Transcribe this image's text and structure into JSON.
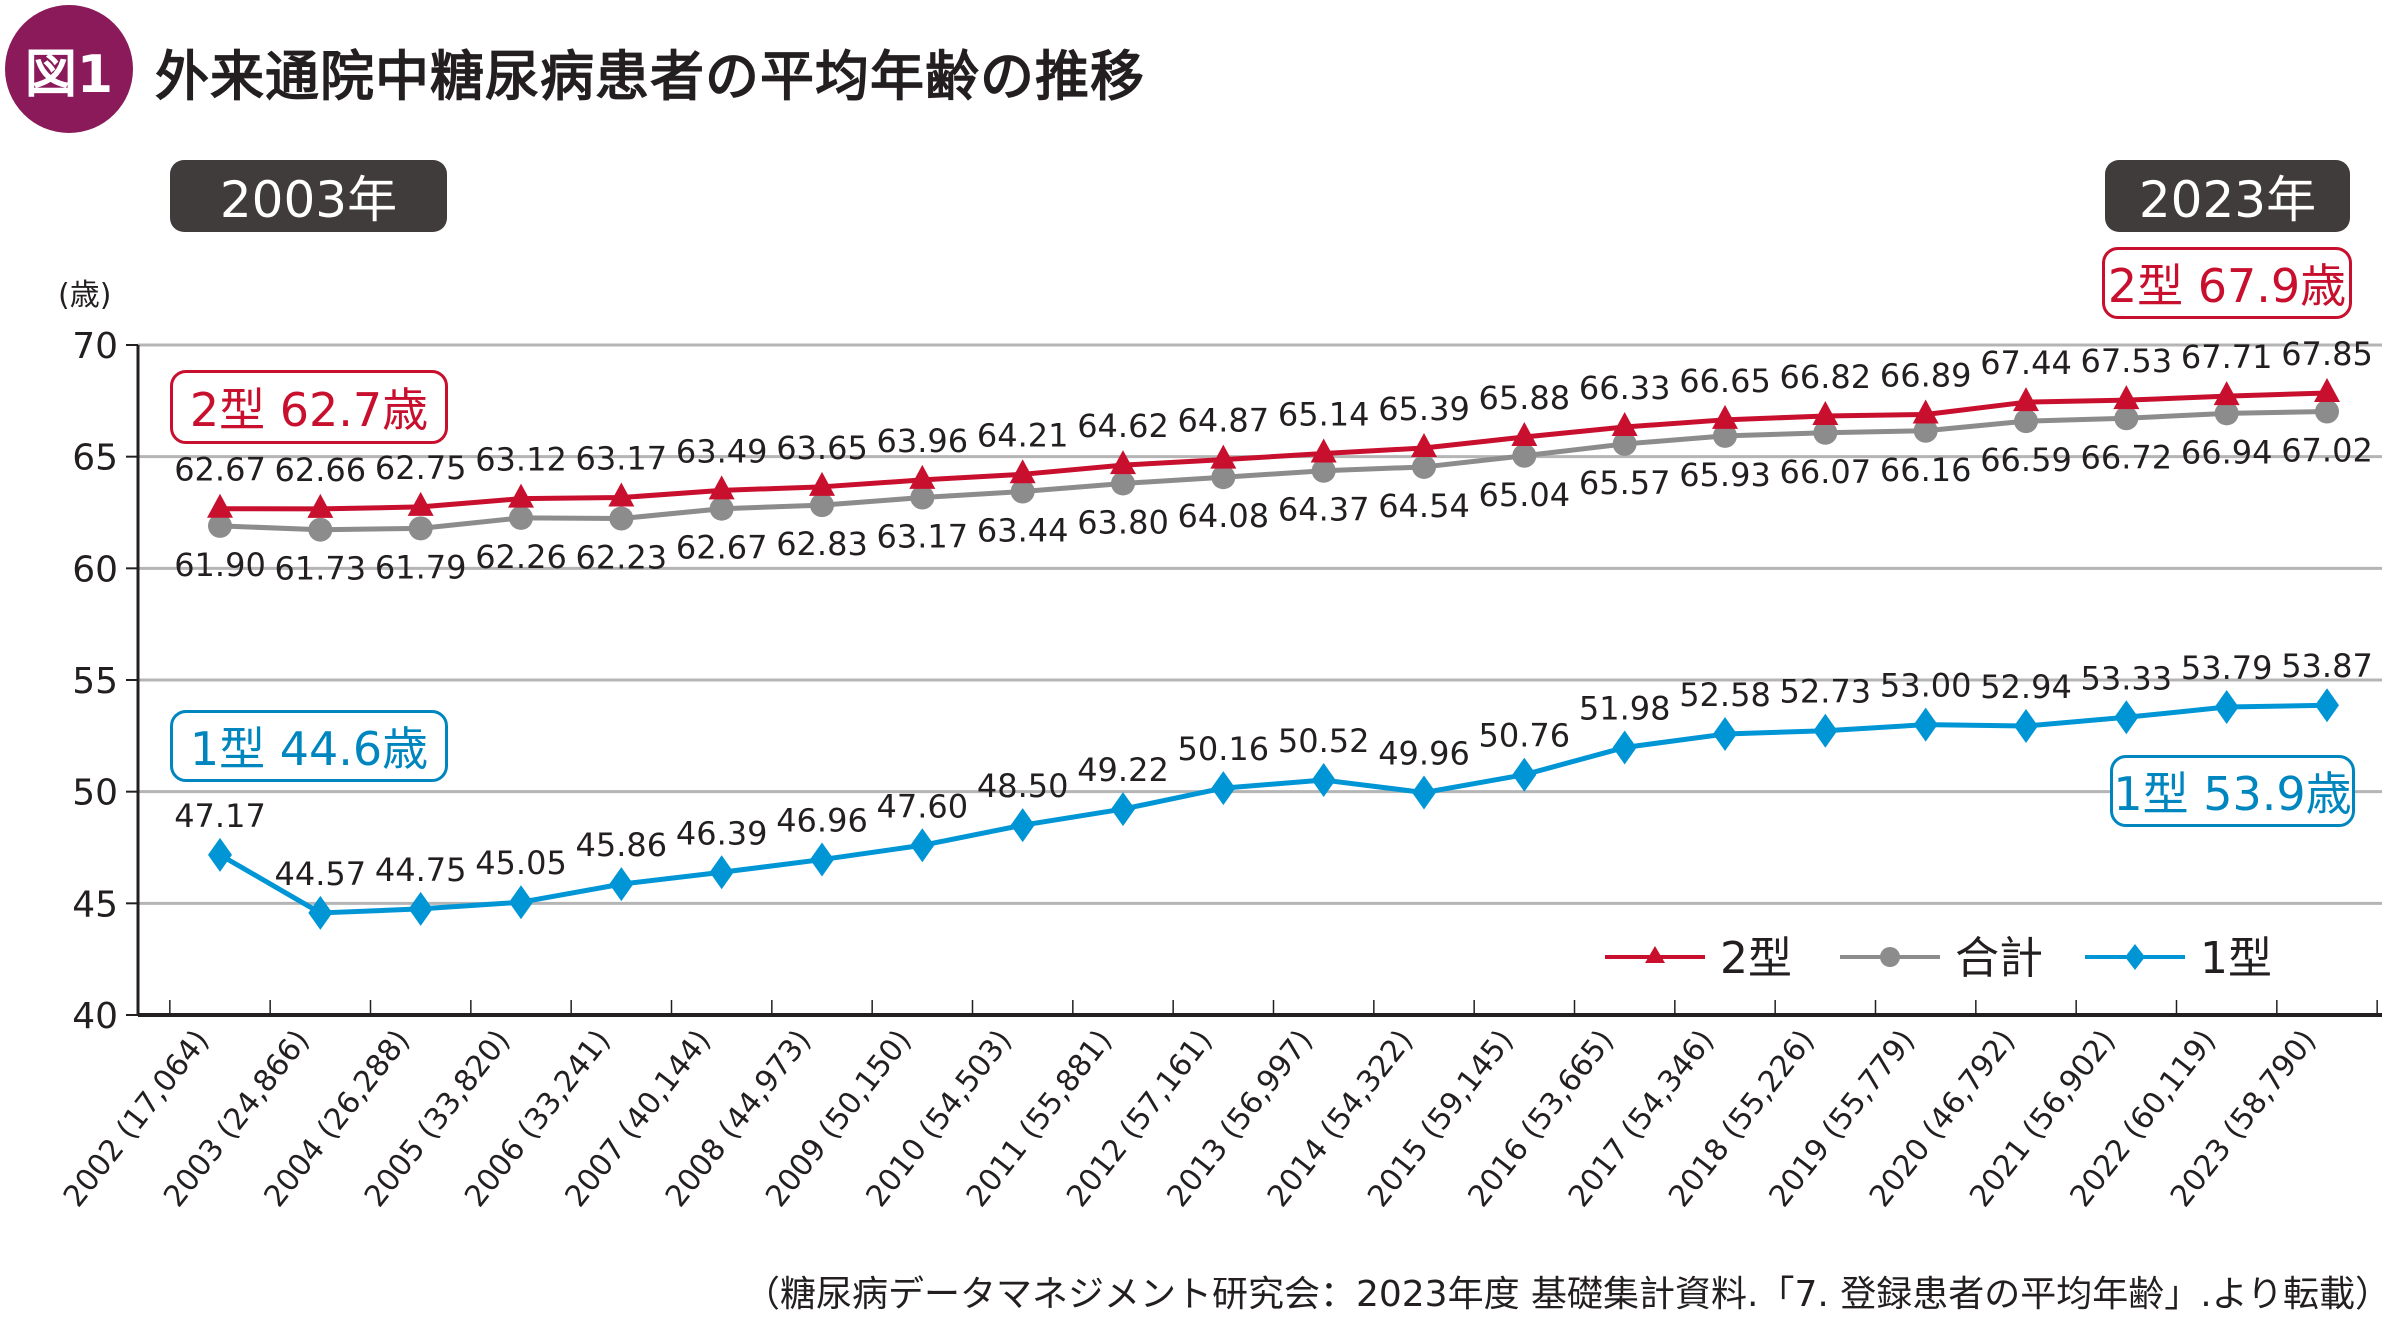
{
  "figure": {
    "badge": "図1",
    "title": "外来通院中糖尿病患者の平均年齢の推移",
    "source": "（糖尿病データマネジメント研究会：2023年度 基礎集計資料.「7. 登録患者の平均年齢」.より転載）"
  },
  "annotations": {
    "year_start": "2003年",
    "year_end": "2023年",
    "type2_start": "2型 62.7歳",
    "type2_end": "2型 67.9歳",
    "type1_start": "1型 44.6歳",
    "type1_end": "1型 53.9歳"
  },
  "colors": {
    "type2": "#c8102e",
    "total": "#8c8c8c",
    "type1": "#0096d6",
    "badge": "#8b1a5a",
    "year_box": "#403c3b"
  },
  "chart_data": {
    "type": "line",
    "title": "外来通院中糖尿病患者の平均年齢の推移",
    "xlabel": "",
    "ylabel": "(歳)",
    "ylim": [
      40,
      70
    ],
    "yticks": [
      40,
      45,
      50,
      55,
      60,
      65,
      70
    ],
    "grid": true,
    "legend_position": "bottom-right",
    "categories": [
      "2002 (17,064)",
      "2003 (24,866)",
      "2004 (26,288)",
      "2005 (33,820)",
      "2006 (33,241)",
      "2007 (40,144)",
      "2008 (44,973)",
      "2009 (50,150)",
      "2010 (54,503)",
      "2011 (55,881)",
      "2012 (57,161)",
      "2013 (56,997)",
      "2014 (54,322)",
      "2015 (59,145)",
      "2016 (53,665)",
      "2017 (54,346)",
      "2018 (55,226)",
      "2019 (55,779)",
      "2020 (46,792)",
      "2021 (56,902)",
      "2022 (60,119)",
      "2023 (58,790)"
    ],
    "series": [
      {
        "name": "2型",
        "marker": "triangle",
        "label_position": "above",
        "values": [
          62.67,
          62.66,
          62.75,
          63.12,
          63.17,
          63.49,
          63.65,
          63.96,
          64.21,
          64.62,
          64.87,
          65.14,
          65.39,
          65.88,
          66.33,
          66.65,
          66.82,
          66.89,
          67.44,
          67.53,
          67.71,
          67.85
        ]
      },
      {
        "name": "合計",
        "marker": "circle",
        "label_position": "below",
        "values": [
          61.9,
          61.73,
          61.79,
          62.26,
          62.23,
          62.67,
          62.83,
          63.17,
          63.44,
          63.8,
          64.08,
          64.37,
          64.54,
          65.04,
          65.57,
          65.93,
          66.07,
          66.16,
          66.59,
          66.72,
          66.94,
          67.02
        ]
      },
      {
        "name": "1型",
        "marker": "diamond",
        "label_position": "above",
        "values": [
          47.17,
          44.57,
          44.75,
          45.05,
          45.86,
          46.39,
          46.96,
          47.6,
          48.5,
          49.22,
          50.16,
          50.52,
          49.96,
          50.76,
          51.98,
          52.58,
          52.73,
          53.0,
          52.94,
          53.33,
          53.79,
          53.87
        ]
      }
    ]
  }
}
